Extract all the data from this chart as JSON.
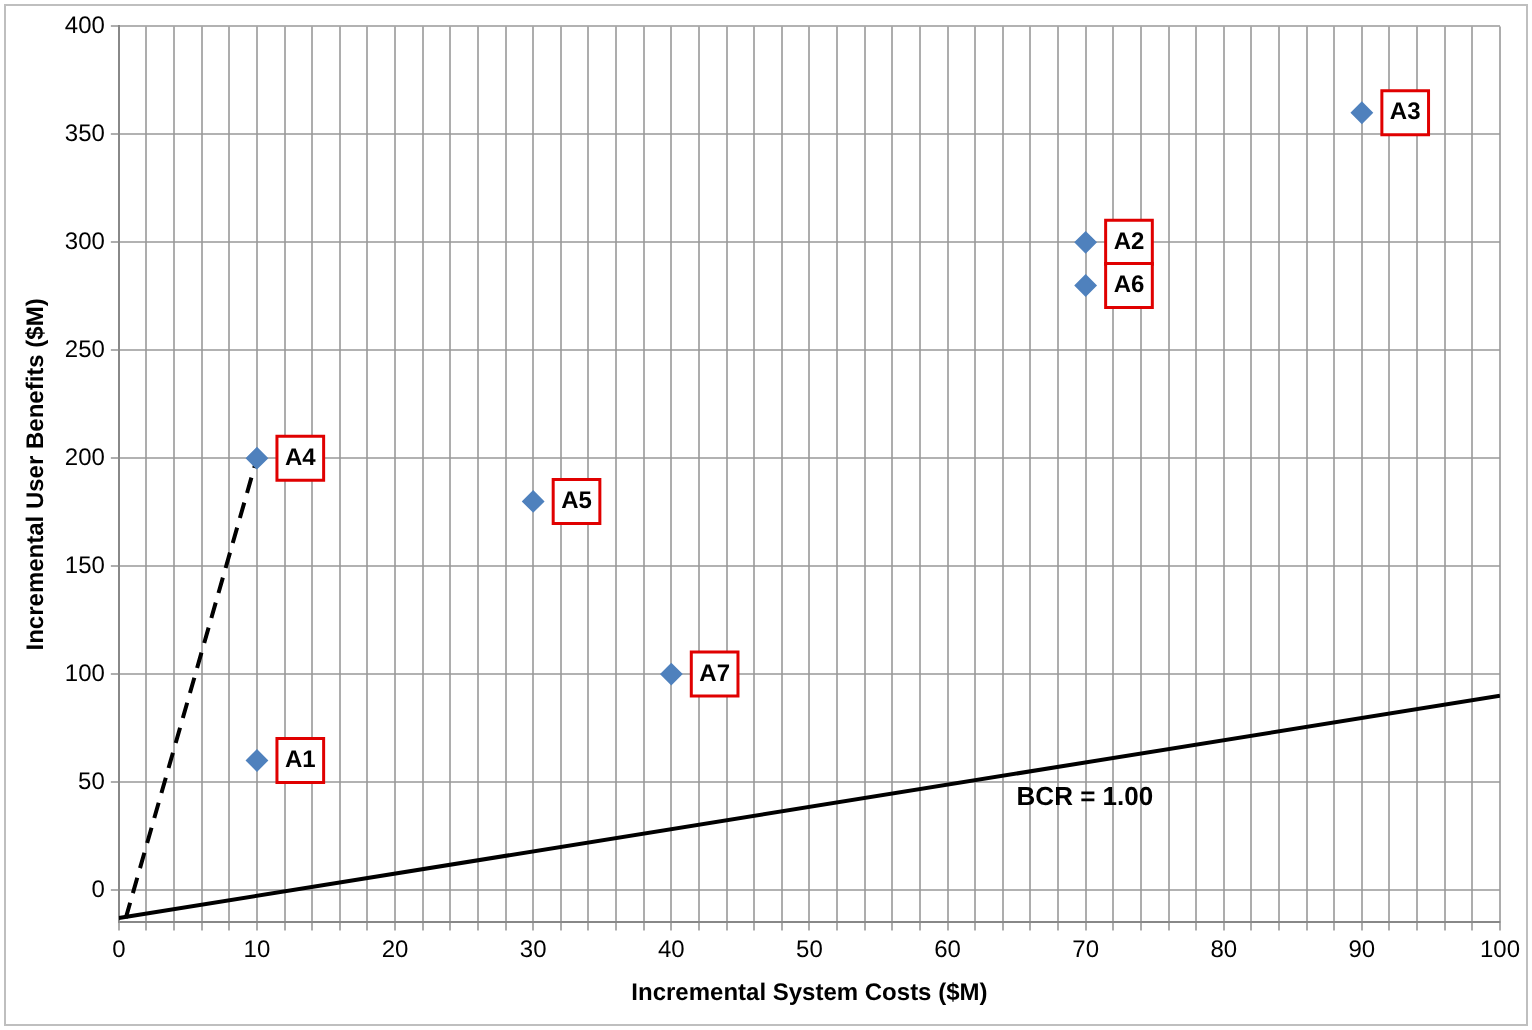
{
  "chart_data": {
    "type": "scatter",
    "xlabel": "Incremental System Costs ($M)",
    "ylabel": "Incremental User Benefits ($M)",
    "series": [
      {
        "type": "scatter",
        "color": "#4f81bd",
        "marker": "diamond",
        "x": [
          10,
          70,
          90,
          10,
          30,
          70,
          40
        ],
        "values": [
          60,
          300,
          360,
          200,
          180,
          280,
          100
        ]
      },
      {
        "type": "line",
        "name": "BCR = 1.00",
        "color": "#000000",
        "line_style": "solid",
        "marker": "none",
        "x": [
          0,
          100
        ],
        "values": [
          -13,
          90
        ]
      },
      {
        "type": "line",
        "color": "#000000",
        "line_style": "dashed",
        "marker": "none",
        "x": [
          0.5,
          10
        ],
        "values": [
          -13,
          200
        ]
      }
    ],
    "annotations": [
      {
        "text": "A1",
        "x": 10,
        "y": 60
      },
      {
        "text": "A2",
        "x": 70,
        "y": 300
      },
      {
        "text": "A3",
        "x": 90,
        "y": 360
      },
      {
        "text": "A4",
        "x": 10,
        "y": 200
      },
      {
        "text": "A5",
        "x": 30,
        "y": 180
      },
      {
        "text": "A6",
        "x": 70,
        "y": 280
      },
      {
        "text": "A7",
        "x": 40,
        "y": 100
      }
    ],
    "xlim": [
      0,
      100
    ],
    "ylim": [
      -15,
      400
    ],
    "xticks": [
      0,
      {
        "value": 2,
        "label": null
      },
      {
        "value": 4,
        "label": null
      },
      {
        "value": 6,
        "label": null
      },
      {
        "value": 8,
        "label": null
      },
      10,
      {
        "value": 12,
        "label": null
      },
      {
        "value": 14,
        "label": null
      },
      {
        "value": 16,
        "label": null
      },
      {
        "value": 18,
        "label": null
      },
      20,
      {
        "value": 22,
        "label": null
      },
      {
        "value": 24,
        "label": null
      },
      {
        "value": 26,
        "label": null
      },
      {
        "value": 28,
        "label": null
      },
      30,
      {
        "value": 32,
        "label": null
      },
      {
        "value": 34,
        "label": null
      },
      {
        "value": 36,
        "label": null
      },
      {
        "value": 38,
        "label": null
      },
      40,
      {
        "value": 42,
        "label": null
      },
      {
        "value": 44,
        "label": null
      },
      {
        "value": 46,
        "label": null
      },
      {
        "value": 48,
        "label": null
      },
      50,
      {
        "value": 52,
        "label": null
      },
      {
        "value": 54,
        "label": null
      },
      {
        "value": 56,
        "label": null
      },
      {
        "value": 58,
        "label": null
      },
      60,
      {
        "value": 62,
        "label": null
      },
      {
        "value": 64,
        "label": null
      },
      {
        "value": 66,
        "label": null
      },
      {
        "value": 68,
        "label": null
      },
      70,
      {
        "value": 72,
        "label": null
      },
      {
        "value": 74,
        "label": null
      },
      {
        "value": 76,
        "label": null
      },
      {
        "value": 78,
        "label": null
      },
      80,
      {
        "value": 82,
        "label": null
      },
      {
        "value": 84,
        "label": null
      },
      {
        "value": 86,
        "label": null
      },
      {
        "value": 88,
        "label": null
      },
      90,
      {
        "value": 92,
        "label": null
      },
      {
        "value": 94,
        "label": null
      },
      {
        "value": 96,
        "label": null
      },
      {
        "value": 98,
        "label": null
      },
      100
    ],
    "yticks": [
      0,
      50,
      100,
      150,
      200,
      250,
      300,
      350,
      400
    ],
    "grid": true,
    "legend": false
  }
}
